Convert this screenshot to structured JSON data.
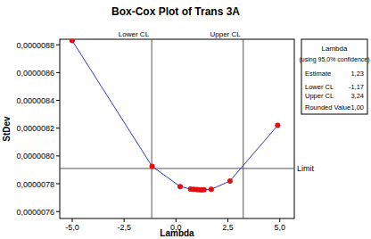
{
  "chart_data": {
    "type": "line",
    "title": "Box-Cox Plot of Trans 3A",
    "x_label": "Lambda",
    "y_label": "StDev",
    "x": [
      -5.0,
      -1.15,
      0.2,
      0.7,
      0.85,
      1.0,
      1.1,
      1.23,
      1.35,
      1.7,
      2.6,
      4.9
    ],
    "values": [
      8.83e-06,
      7.925e-06,
      7.78e-06,
      7.762e-06,
      7.76e-06,
      7.758e-06,
      7.757e-06,
      7.756e-06,
      7.757e-06,
      7.76e-06,
      7.82e-06,
      8.22e-06
    ],
    "color": "#3333cc",
    "marker": "circle",
    "xlim": [
      -5.6,
      5.7
    ],
    "ylim": [
      7.55e-06,
      8.84e-06
    ],
    "xticks": [
      {
        "value": -5.0,
        "label": "-5,0"
      },
      {
        "value": -2.5,
        "label": "-2,5"
      },
      {
        "value": 0.0,
        "label": "0,0"
      },
      {
        "value": 2.5,
        "label": "2,5"
      },
      {
        "value": 5.0,
        "label": "5,0"
      }
    ],
    "yticks": [
      {
        "value": 7.6e-06,
        "label": "0,0000076"
      },
      {
        "value": 7.8e-06,
        "label": "0,0000078"
      },
      {
        "value": 8e-06,
        "label": "0,0000080"
      },
      {
        "value": 8.2e-06,
        "label": "0,0000082"
      },
      {
        "value": 8.4e-06,
        "label": "0,0000084"
      },
      {
        "value": 8.6e-06,
        "label": "0,0000086"
      },
      {
        "value": 8.8e-06,
        "label": "0,0000088"
      }
    ],
    "limit": {
      "value": 7.91e-06,
      "label": "Limit"
    },
    "lambda_table": {
      "title": "Lambda",
      "subtitle": "(using 95,0% confidence)",
      "estimate": {
        "label": "Estimate",
        "value": 1.23,
        "value_label": "1,23"
      },
      "lower_cl": {
        "label": "Lower CL",
        "value": -1.17,
        "value_label": "-1,17"
      },
      "upper_cl": {
        "label": "Upper CL",
        "value": 3.24,
        "value_label": "3,24"
      },
      "rounded": {
        "label": "Rounded Value",
        "value": 1.0,
        "value_label": "1,00"
      }
    }
  }
}
